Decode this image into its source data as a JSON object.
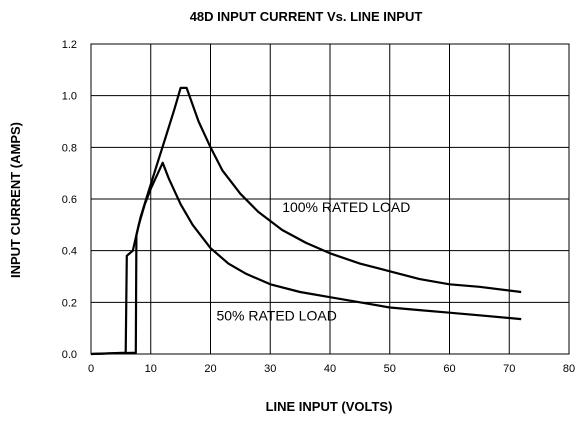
{
  "chart_data": {
    "type": "line",
    "title": "48D INPUT CURRENT Vs. LINE INPUT",
    "xlabel": "LINE INPUT (VOLTS)",
    "ylabel": "INPUT CURRENT (AMPS)",
    "xlim": [
      0,
      80
    ],
    "ylim": [
      0,
      1.2
    ],
    "xticks": [
      0,
      10,
      20,
      30,
      40,
      50,
      60,
      70,
      80
    ],
    "yticks": [
      0.0,
      0.2,
      0.4,
      0.6,
      0.8,
      1.0,
      1.2
    ],
    "xtick_labels": [
      "0",
      "10",
      "20",
      "30",
      "40",
      "50",
      "60",
      "70",
      "80"
    ],
    "ytick_labels": [
      "0.0",
      "0.2",
      "0.4",
      "0.6",
      "0.8",
      "1.0",
      "1.2"
    ],
    "grid": true,
    "legend": "none",
    "series": [
      {
        "name": "100% RATED LOAD",
        "color": "#000000",
        "points": [
          [
            0,
            0
          ],
          [
            7.5,
            0.005
          ],
          [
            7.6,
            0.46
          ],
          [
            8.3,
            0.53
          ],
          [
            9.5,
            0.62
          ],
          [
            11,
            0.73
          ],
          [
            12.5,
            0.84
          ],
          [
            14,
            0.95
          ],
          [
            15,
            1.03
          ],
          [
            16,
            1.03
          ],
          [
            18,
            0.9
          ],
          [
            20,
            0.8
          ],
          [
            22,
            0.71
          ],
          [
            25,
            0.62
          ],
          [
            28,
            0.55
          ],
          [
            32,
            0.48
          ],
          [
            36,
            0.43
          ],
          [
            40,
            0.39
          ],
          [
            45,
            0.35
          ],
          [
            50,
            0.32
          ],
          [
            55,
            0.29
          ],
          [
            60,
            0.27
          ],
          [
            65,
            0.26
          ],
          [
            72,
            0.24
          ]
        ]
      },
      {
        "name": "50% RATED LOAD",
        "color": "#000000",
        "points": [
          [
            0,
            0
          ],
          [
            5.8,
            0.005
          ],
          [
            6,
            0.38
          ],
          [
            7,
            0.4
          ],
          [
            8,
            0.5
          ],
          [
            9,
            0.58
          ],
          [
            10,
            0.64
          ],
          [
            11,
            0.69
          ],
          [
            12,
            0.74
          ],
          [
            13,
            0.68
          ],
          [
            15,
            0.58
          ],
          [
            17,
            0.5
          ],
          [
            20,
            0.41
          ],
          [
            23,
            0.35
          ],
          [
            26,
            0.31
          ],
          [
            30,
            0.27
          ],
          [
            35,
            0.24
          ],
          [
            40,
            0.22
          ],
          [
            45,
            0.2
          ],
          [
            50,
            0.18
          ],
          [
            55,
            0.17
          ],
          [
            60,
            0.16
          ],
          [
            65,
            0.15
          ],
          [
            72,
            0.135
          ]
        ]
      }
    ],
    "annotations": [
      {
        "text": "100% RATED LOAD",
        "x": 32,
        "y": 0.55
      },
      {
        "text": "50% RATED LOAD",
        "x": 21,
        "y": 0.13
      }
    ]
  }
}
